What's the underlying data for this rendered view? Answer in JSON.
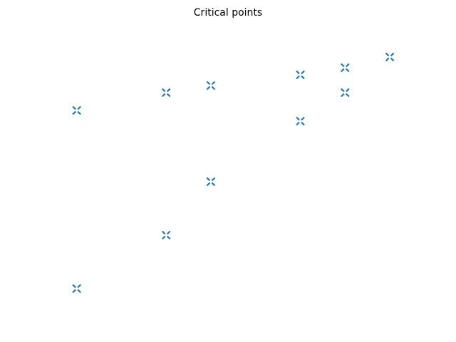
{
  "chart_data": {
    "type": "scatter",
    "title": "Critical points",
    "color": "#1f77b4",
    "x": [
      0,
      0,
      2,
      2,
      3,
      3,
      5,
      5,
      6,
      6,
      7
    ],
    "values": [
      10,
      0,
      11,
      3,
      11.4,
      6,
      12,
      9.4,
      12.4,
      11,
      13
    ],
    "xlim": [
      -0.44,
      7.46
    ],
    "ylim": [
      -0.88,
      13.88
    ],
    "grid": false
  }
}
